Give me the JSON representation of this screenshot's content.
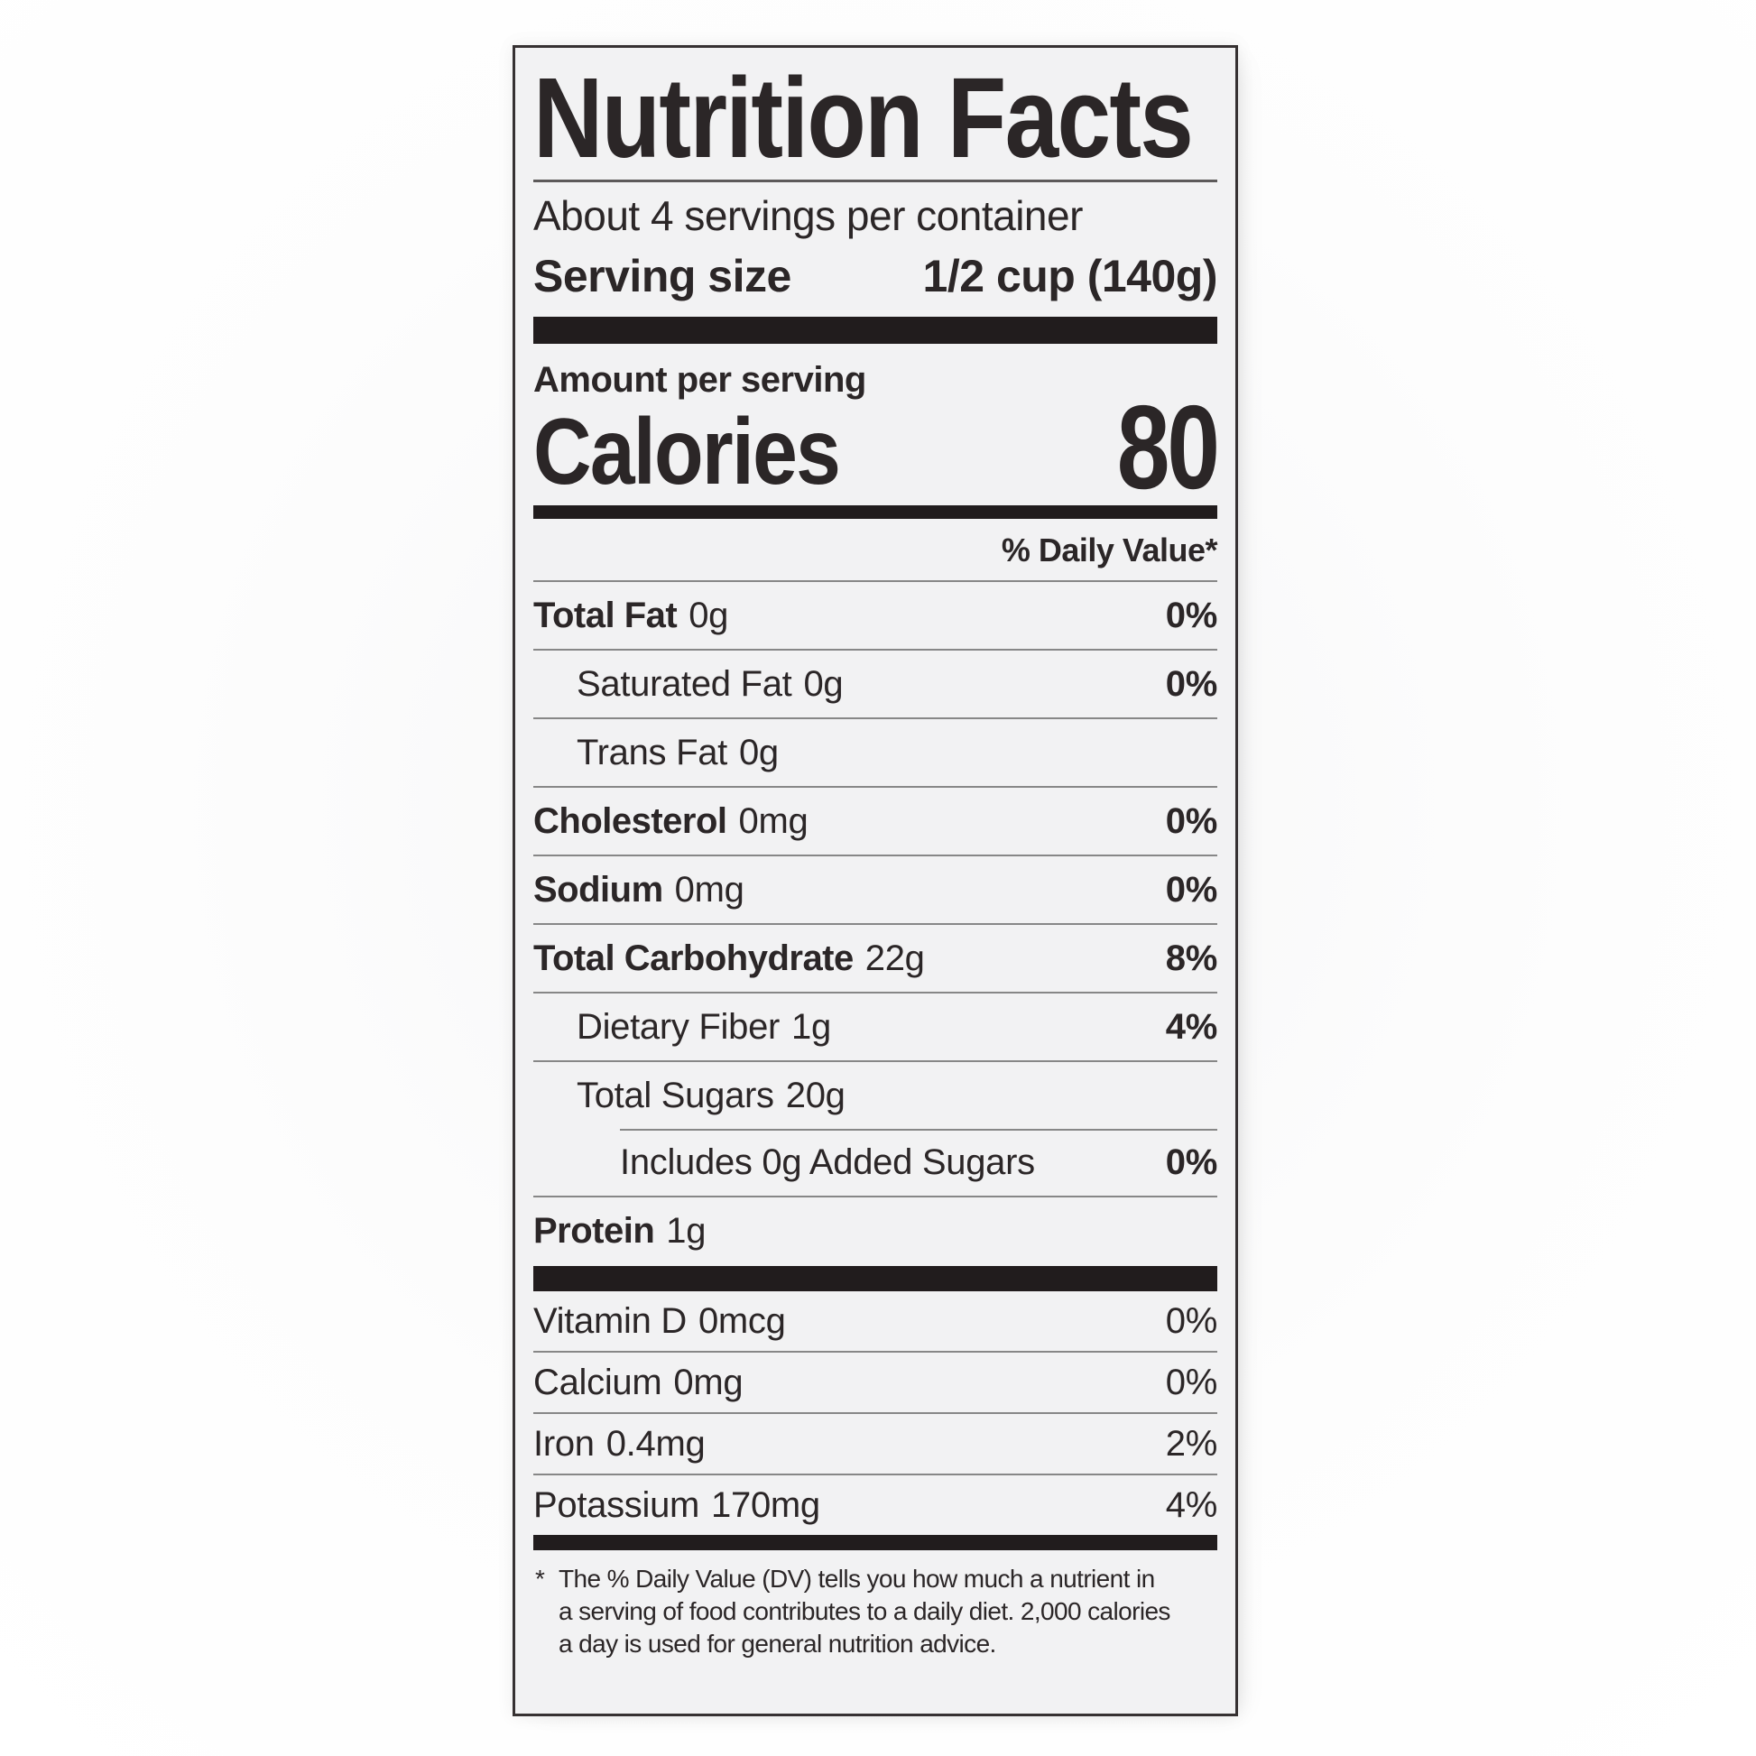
{
  "label": {
    "title": "Nutrition Facts",
    "servings_per_container": "About 4 servings per container",
    "serving_size": {
      "label": "Serving size",
      "value": "1/2 cup (140g)"
    },
    "amount_per_serving": "Amount per serving",
    "calories": {
      "label": "Calories",
      "value": "80"
    },
    "daily_value_header": "% Daily Value*",
    "nutrients": [
      {
        "name": "Total Fat",
        "amount": "0g",
        "dv": "0%",
        "indent": 0
      },
      {
        "name": "Saturated Fat",
        "amount": "0g",
        "dv": "0%",
        "indent": 1
      },
      {
        "name": "Trans Fat",
        "amount": "0g",
        "dv": "",
        "indent": 1
      },
      {
        "name": "Cholesterol",
        "amount": "0mg",
        "dv": "0%",
        "indent": 0
      },
      {
        "name": "Sodium",
        "amount": "0mg",
        "dv": "0%",
        "indent": 0
      },
      {
        "name": "Total Carbohydrate",
        "amount": "22g",
        "dv": "8%",
        "indent": 0
      },
      {
        "name": "Dietary Fiber",
        "amount": "1g",
        "dv": "4%",
        "indent": 1
      },
      {
        "name": "Total Sugars",
        "amount": "20g",
        "dv": "",
        "indent": 1
      },
      {
        "name": "Includes 0g Added Sugars",
        "amount": "",
        "dv": "0%",
        "indent": 2
      },
      {
        "name": "Protein",
        "amount": "1g",
        "dv": "",
        "indent": 0
      }
    ],
    "micronutrients": [
      {
        "name": "Vitamin D",
        "amount": "0mcg",
        "dv": "0%"
      },
      {
        "name": "Calcium",
        "amount": "0mg",
        "dv": "0%"
      },
      {
        "name": "Iron",
        "amount": "0.4mg",
        "dv": "2%"
      },
      {
        "name": "Potassium",
        "amount": "170mg",
        "dv": "4%"
      }
    ],
    "footnote": {
      "marker": "*",
      "lines": [
        "The % Daily Value (DV) tells you how much a nutrient in",
        "a serving of food contributes to a daily diet. 2,000 calories",
        "a day is used for general nutrition advice."
      ]
    }
  },
  "colors": {
    "ink": "#2b2627",
    "bar": "#211c1d",
    "rule": "#878787",
    "paper": "#f2f2f3",
    "background": "#fdfdfd"
  }
}
